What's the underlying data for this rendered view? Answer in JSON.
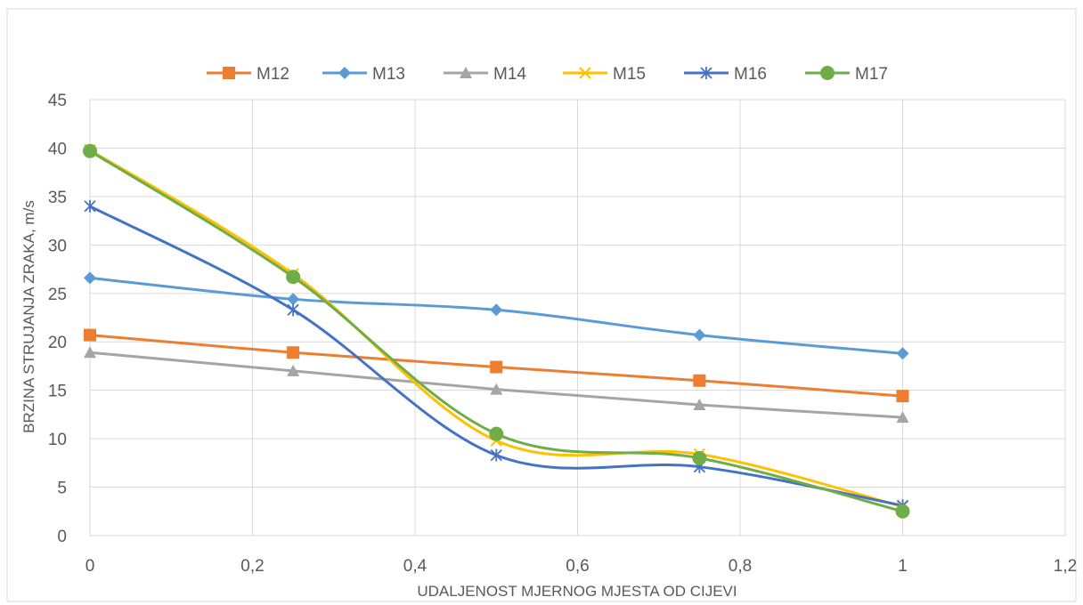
{
  "chart_data": {
    "type": "line",
    "title": "",
    "xlabel": "UDALJENOST MJERNOG MJESTA OD CIJEVI",
    "ylabel": "BRZINA STRUJANJA ZRAKA, m/s",
    "xlim": [
      0,
      1.2
    ],
    "ylim": [
      0,
      45
    ],
    "xticks": [
      0,
      0.2,
      0.4,
      0.6,
      0.8,
      1,
      1.2
    ],
    "xtick_labels": [
      "0",
      "0,2",
      "0,4",
      "0,6",
      "0,8",
      "1",
      "1,2"
    ],
    "yticks": [
      0,
      5,
      10,
      15,
      20,
      25,
      30,
      35,
      40,
      45
    ],
    "ytick_labels": [
      "0",
      "5",
      "10",
      "15",
      "20",
      "25",
      "30",
      "35",
      "40",
      "45"
    ],
    "grid": true,
    "legend_position": "top",
    "smooth": true,
    "x": [
      0,
      0.25,
      0.5,
      0.75,
      1
    ],
    "series": [
      {
        "name": "M12",
        "color": "#ED7D31",
        "marker": "square",
        "values": [
          20.7,
          18.9,
          17.4,
          16.0,
          14.4
        ]
      },
      {
        "name": "M13",
        "color": "#5B9BD5",
        "marker": "diamond",
        "values": [
          26.6,
          24.4,
          23.3,
          20.7,
          18.8
        ]
      },
      {
        "name": "M14",
        "color": "#A5A5A5",
        "marker": "triangle",
        "values": [
          18.9,
          17.0,
          15.1,
          13.5,
          12.2
        ]
      },
      {
        "name": "M15",
        "color": "#FFC000",
        "marker": "x",
        "values": [
          39.8,
          27.0,
          9.8,
          8.4,
          3.0
        ]
      },
      {
        "name": "M16",
        "color": "#4472C4",
        "marker": "star",
        "values": [
          34.0,
          23.3,
          8.3,
          7.1,
          3.1
        ]
      },
      {
        "name": "M17",
        "color": "#70AD47",
        "marker": "circle",
        "values": [
          39.7,
          26.7,
          10.5,
          8.0,
          2.5
        ]
      }
    ]
  }
}
